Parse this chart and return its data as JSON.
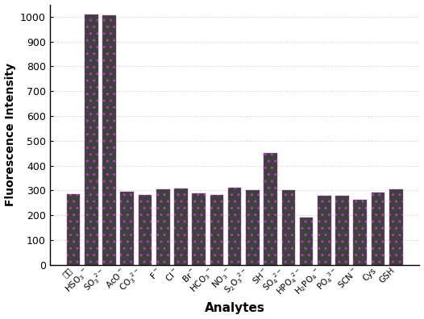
{
  "categories": [
    "探针",
    "HSO$_3$$^-$",
    "SO$_3$$^{2-}$",
    "AcO$^-$",
    "CO$_3$$^{2-}$",
    "F$^-$",
    "Cl$^-$",
    "Br$^-$",
    "HCO$_3$$^-$",
    "NO$_3$$^-$",
    "S$_2$O$_3$$^{2-}$",
    "SH$^-$",
    "SO$_4$$^{2-}$",
    "HPO$_4$$^{2-}$",
    "H$_2$PO$_4$$^-$",
    "PO$_4$$^{3-}$",
    "SCN$^-$",
    "Cys",
    "GSH"
  ],
  "values": [
    285,
    1010,
    1005,
    295,
    283,
    305,
    308,
    288,
    283,
    310,
    300,
    450,
    302,
    192,
    278,
    278,
    262,
    292,
    303
  ],
  "bar_color": "#404040",
  "hatch_color": "#b040b0",
  "ylabel": "Fluorescence Intensity",
  "xlabel": "Analytes",
  "ylim": [
    0,
    1050
  ],
  "yticks": [
    0,
    100,
    200,
    300,
    400,
    500,
    600,
    700,
    800,
    900,
    1000
  ],
  "background_color": "#ffffff",
  "grid_color": "#c8c8c8",
  "ylabel_fontsize": 10,
  "xlabel_fontsize": 11,
  "tick_labelsize": 9,
  "xtick_labelsize": 7.5
}
